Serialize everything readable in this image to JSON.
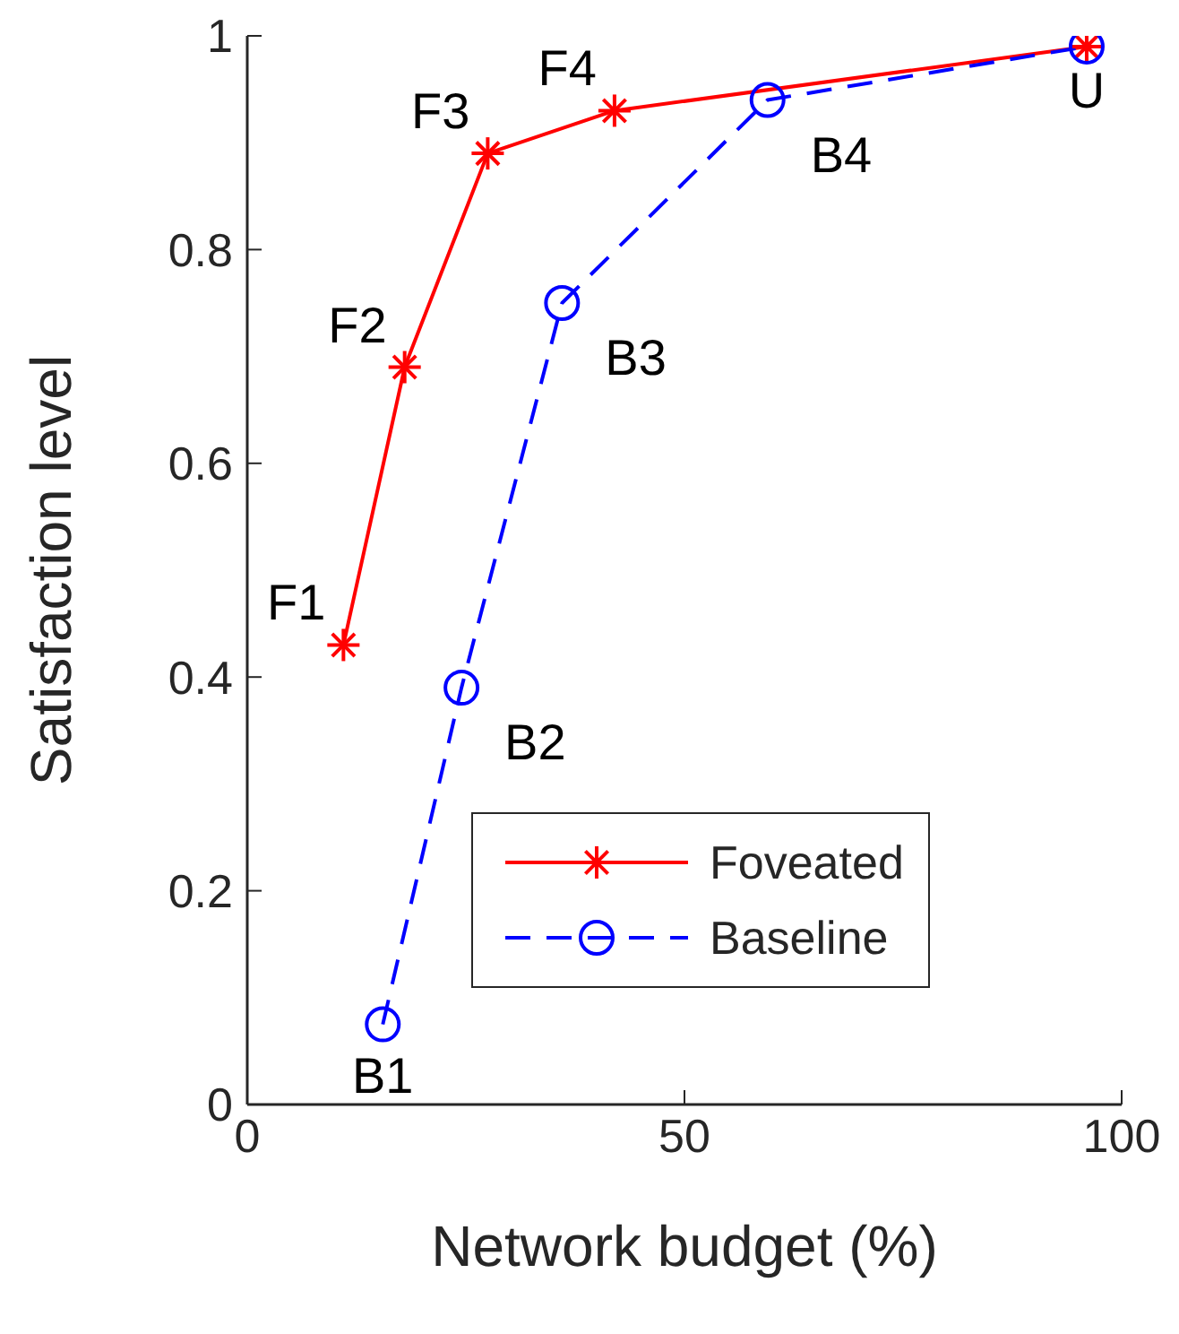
{
  "chart_data": {
    "type": "line",
    "xlabel": "Network budget (%)",
    "ylabel": "Satisfaction level",
    "xlim": [
      0,
      100
    ],
    "ylim": [
      0,
      1
    ],
    "xticks": [
      0,
      50,
      100
    ],
    "yticks": [
      0,
      0.2,
      0.4,
      0.6,
      0.8,
      1
    ],
    "grid": false,
    "legend": "bottom right",
    "series": [
      {
        "name": "Foveated",
        "color": "#ff0000",
        "marker": "cross",
        "line_style": "solid",
        "x": [
          11,
          18,
          27.5,
          42,
          96
        ],
        "values": [
          0.43,
          0.69,
          0.89,
          0.93,
          0.99
        ]
      },
      {
        "name": "Baseline",
        "color": "#0000ff",
        "marker": "circle",
        "line_style": "dashed",
        "x": [
          15.5,
          24.5,
          36,
          59.5,
          96
        ],
        "values": [
          0.075,
          0.39,
          0.75,
          0.94,
          0.99
        ]
      }
    ],
    "annotations": [
      {
        "text": "F1",
        "x": 11,
        "y": 0.43
      },
      {
        "text": "F2",
        "x": 18,
        "y": 0.69
      },
      {
        "text": "F3",
        "x": 27.5,
        "y": 0.89
      },
      {
        "text": "F4",
        "x": 42,
        "y": 0.93
      },
      {
        "text": "B1",
        "x": 15.5,
        "y": 0.075
      },
      {
        "text": "B2",
        "x": 24.5,
        "y": 0.39
      },
      {
        "text": "B3",
        "x": 36,
        "y": 0.75
      },
      {
        "text": "B4",
        "x": 59.5,
        "y": 0.94
      },
      {
        "text": "U",
        "x": 96,
        "y": 0.99
      }
    ]
  }
}
